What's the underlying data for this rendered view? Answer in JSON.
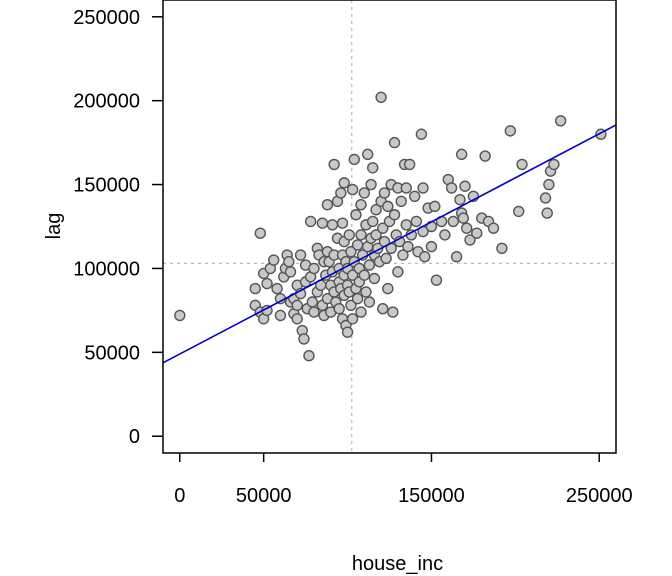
{
  "chart_data": {
    "type": "scatter",
    "title": "",
    "xlabel": "house_inc",
    "ylabel": "lag",
    "xlim": [
      -10000,
      260000
    ],
    "ylim": [
      -10000,
      260000
    ],
    "x_ticks": [
      0,
      50000,
      150000,
      250000
    ],
    "x_tick_labels": [
      "0",
      "50000",
      "150000",
      "250000"
    ],
    "y_ticks": [
      0,
      50000,
      100000,
      150000,
      200000,
      250000
    ],
    "y_tick_labels": [
      "0",
      "50000",
      "100000",
      "150000",
      "200000",
      "250000"
    ],
    "grid": false,
    "reference_lines": {
      "x_mean": 102500,
      "y_mean": 103000
    },
    "regression_line": {
      "intercept": 49000,
      "slope": 0.525
    },
    "colors": {
      "points_fill": "#c8c8c8",
      "points_stroke": "#555555",
      "regression": "#0000cc",
      "reference": "#bbbbbb"
    },
    "points": [
      [
        0,
        72000
      ],
      [
        45000,
        88000
      ],
      [
        48000,
        121000
      ],
      [
        45000,
        78000
      ],
      [
        48000,
        74000
      ],
      [
        50000,
        97000
      ],
      [
        52000,
        91000
      ],
      [
        54000,
        100000
      ],
      [
        50000,
        70000
      ],
      [
        52000,
        75000
      ],
      [
        56000,
        105000
      ],
      [
        58000,
        88000
      ],
      [
        60000,
        82000
      ],
      [
        60000,
        72000
      ],
      [
        62000,
        95000
      ],
      [
        63000,
        100000
      ],
      [
        64000,
        108000
      ],
      [
        65000,
        104000
      ],
      [
        66000,
        98000
      ],
      [
        66000,
        80000
      ],
      [
        68000,
        82000
      ],
      [
        68000,
        73000
      ],
      [
        70000,
        90000
      ],
      [
        70000,
        78000
      ],
      [
        70000,
        70000
      ],
      [
        72000,
        108000
      ],
      [
        72000,
        85000
      ],
      [
        73000,
        63000
      ],
      [
        74000,
        58000
      ],
      [
        75000,
        102000
      ],
      [
        75000,
        92000
      ],
      [
        76000,
        76000
      ],
      [
        77000,
        48000
      ],
      [
        78000,
        128000
      ],
      [
        78000,
        95000
      ],
      [
        79000,
        80000
      ],
      [
        80000,
        100000
      ],
      [
        80000,
        74000
      ],
      [
        82000,
        112000
      ],
      [
        82000,
        86000
      ],
      [
        83000,
        108000
      ],
      [
        84000,
        90000
      ],
      [
        85000,
        78000
      ],
      [
        85000,
        127000
      ],
      [
        86000,
        104000
      ],
      [
        86000,
        72000
      ],
      [
        87000,
        96000
      ],
      [
        88000,
        138000
      ],
      [
        88000,
        110000
      ],
      [
        88000,
        82000
      ],
      [
        89000,
        104000
      ],
      [
        90000,
        90000
      ],
      [
        90000,
        74000
      ],
      [
        91000,
        126000
      ],
      [
        91000,
        98000
      ],
      [
        92000,
        162000
      ],
      [
        92000,
        108000
      ],
      [
        92000,
        86000
      ],
      [
        93000,
        80000
      ],
      [
        94000,
        140000
      ],
      [
        94000,
        118000
      ],
      [
        95000,
        100000
      ],
      [
        95000,
        92000
      ],
      [
        95000,
        76000
      ],
      [
        96000,
        145000
      ],
      [
        96000,
        88000
      ],
      [
        97000,
        127000
      ],
      [
        97000,
        108000
      ],
      [
        97000,
        70000
      ],
      [
        98000,
        151000
      ],
      [
        98000,
        116000
      ],
      [
        98000,
        96000
      ],
      [
        98000,
        84000
      ],
      [
        99000,
        104000
      ],
      [
        99000,
        66000
      ],
      [
        100000,
        100000
      ],
      [
        100000,
        90000
      ],
      [
        100000,
        62000
      ],
      [
        101000,
        120000
      ],
      [
        101000,
        86000
      ],
      [
        102000,
        110000
      ],
      [
        102000,
        78000
      ],
      [
        103000,
        147000
      ],
      [
        103000,
        96000
      ],
      [
        103000,
        70000
      ],
      [
        104000,
        165000
      ],
      [
        104000,
        104000
      ],
      [
        105000,
        132000
      ],
      [
        105000,
        88000
      ],
      [
        106000,
        114000
      ],
      [
        106000,
        82000
      ],
      [
        107000,
        100000
      ],
      [
        107000,
        92000
      ],
      [
        108000,
        138000
      ],
      [
        108000,
        120000
      ],
      [
        108000,
        74000
      ],
      [
        109000,
        108000
      ],
      [
        110000,
        145000
      ],
      [
        110000,
        96000
      ],
      [
        111000,
        126000
      ],
      [
        111000,
        86000
      ],
      [
        112000,
        168000
      ],
      [
        112000,
        113000
      ],
      [
        113000,
        102000
      ],
      [
        113000,
        80000
      ],
      [
        114000,
        150000
      ],
      [
        114000,
        118000
      ],
      [
        115000,
        160000
      ],
      [
        115000,
        128000
      ],
      [
        116000,
        108000
      ],
      [
        116000,
        94000
      ],
      [
        117000,
        135000
      ],
      [
        117000,
        120000
      ],
      [
        118000,
        112000
      ],
      [
        119000,
        104000
      ],
      [
        120000,
        202000
      ],
      [
        120000,
        140000
      ],
      [
        121000,
        124000
      ],
      [
        121000,
        76000
      ],
      [
        122000,
        145000
      ],
      [
        122000,
        116000
      ],
      [
        123000,
        106000
      ],
      [
        124000,
        137000
      ],
      [
        124000,
        88000
      ],
      [
        125000,
        128000
      ],
      [
        126000,
        150000
      ],
      [
        126000,
        112000
      ],
      [
        127000,
        74000
      ],
      [
        128000,
        175000
      ],
      [
        128000,
        132000
      ],
      [
        129000,
        120000
      ],
      [
        130000,
        148000
      ],
      [
        130000,
        98000
      ],
      [
        131000,
        116000
      ],
      [
        132000,
        140000
      ],
      [
        133000,
        108000
      ],
      [
        134000,
        162000
      ],
      [
        135000,
        148000
      ],
      [
        135000,
        126000
      ],
      [
        136000,
        113000
      ],
      [
        137000,
        162000
      ],
      [
        138000,
        120000
      ],
      [
        140000,
        143000
      ],
      [
        141000,
        128000
      ],
      [
        142000,
        110000
      ],
      [
        144000,
        180000
      ],
      [
        145000,
        148000
      ],
      [
        145000,
        122000
      ],
      [
        146000,
        107000
      ],
      [
        148000,
        136000
      ],
      [
        150000,
        125000
      ],
      [
        150000,
        113000
      ],
      [
        152000,
        137000
      ],
      [
        153000,
        93000
      ],
      [
        156000,
        128000
      ],
      [
        158000,
        120000
      ],
      [
        160000,
        153000
      ],
      [
        162000,
        148000
      ],
      [
        163000,
        128000
      ],
      [
        165000,
        107000
      ],
      [
        167000,
        141000
      ],
      [
        168000,
        168000
      ],
      [
        168000,
        133000
      ],
      [
        169000,
        130000
      ],
      [
        170000,
        149000
      ],
      [
        171000,
        124000
      ],
      [
        173000,
        117000
      ],
      [
        175000,
        143000
      ],
      [
        177000,
        121000
      ],
      [
        180000,
        130000
      ],
      [
        182000,
        167000
      ],
      [
        184000,
        128000
      ],
      [
        187000,
        124000
      ],
      [
        192000,
        112000
      ],
      [
        197000,
        182000
      ],
      [
        202000,
        134000
      ],
      [
        204000,
        162000
      ],
      [
        218000,
        142000
      ],
      [
        219000,
        133000
      ],
      [
        220000,
        150000
      ],
      [
        221000,
        158000
      ],
      [
        223000,
        162000
      ],
      [
        227000,
        188000
      ],
      [
        251000,
        180000
      ]
    ]
  }
}
